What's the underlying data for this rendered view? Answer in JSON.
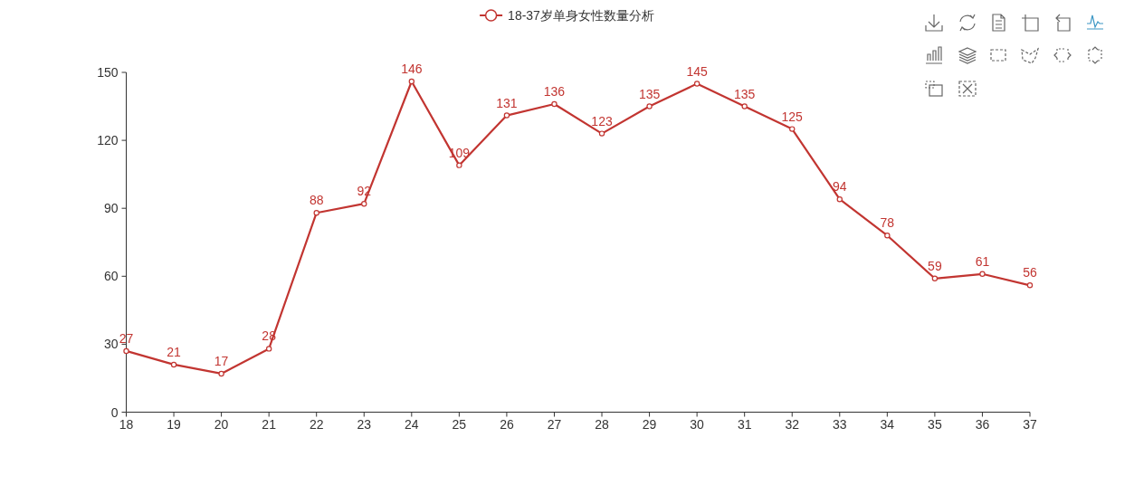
{
  "chart_data": {
    "type": "line",
    "categories": [
      "18",
      "19",
      "20",
      "21",
      "22",
      "23",
      "24",
      "25",
      "26",
      "27",
      "28",
      "29",
      "30",
      "31",
      "32",
      "33",
      "34",
      "35",
      "36",
      "37"
    ],
    "series": [
      {
        "name": "18-37岁单身女性数量分析",
        "color": "#c23531",
        "values": [
          27,
          21,
          17,
          28,
          88,
          92,
          146,
          109,
          131,
          136,
          123,
          135,
          145,
          135,
          125,
          94,
          78,
          59,
          61,
          56
        ]
      }
    ],
    "ylim": [
      0,
      150
    ],
    "yticks": [
      0,
      30,
      60,
      90,
      120,
      150
    ],
    "marker": "circle",
    "line_style": "solid",
    "data_labels": true,
    "legend": "top",
    "grid": false
  }
}
